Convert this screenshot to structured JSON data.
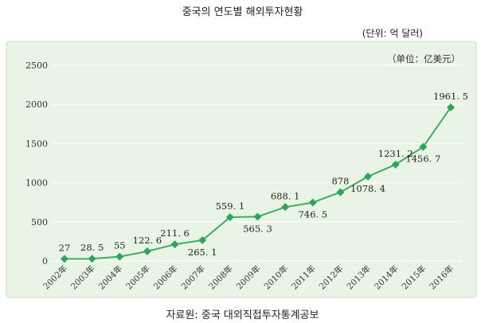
{
  "title": "중국의 연도별 해외투자현황",
  "unit_outer": "(단위: 억 달러)",
  "source": "자료원: 중국 대외직접투자통계공보",
  "colors": {
    "line": "#3dab63",
    "marker": "#2ea55a",
    "plot_background": "#eaf4e6",
    "gridline": "#ffffff",
    "frame_border": "#c9ddc3"
  },
  "chart_data": {
    "type": "line",
    "title": "",
    "unit_label": "（单位：亿美元）",
    "xlabel": "",
    "ylabel": "",
    "ylim": [
      0,
      2500
    ],
    "yticks": [
      0,
      500,
      1000,
      1500,
      2000,
      2500
    ],
    "grid": true,
    "legend": "none",
    "categories": [
      "2002年",
      "2003年",
      "2004年",
      "2005年",
      "2006年",
      "2007年",
      "2008年",
      "2009年",
      "2010年",
      "2011年",
      "2012年",
      "2013年",
      "2014年",
      "2015年",
      "2016年"
    ],
    "series": [
      {
        "values": [
          27,
          28.5,
          55,
          122.6,
          211.6,
          265.1,
          559.1,
          565.3,
          688.1,
          746.5,
          878,
          1078.4,
          1231.2,
          1456.7,
          1961.5
        ],
        "labels": [
          "27",
          "28. 5",
          "55",
          "122. 6",
          "211. 6",
          "265. 1",
          "559. 1",
          "565. 3",
          "688. 1",
          "746. 5",
          "878",
          "1078. 4",
          "1231. 2",
          "1456. 7",
          "1961. 5"
        ],
        "label_positions": [
          "above",
          "above",
          "above",
          "above",
          "above",
          "below",
          "above",
          "below",
          "above",
          "below",
          "above",
          "below",
          "above",
          "below",
          "above"
        ]
      }
    ]
  }
}
